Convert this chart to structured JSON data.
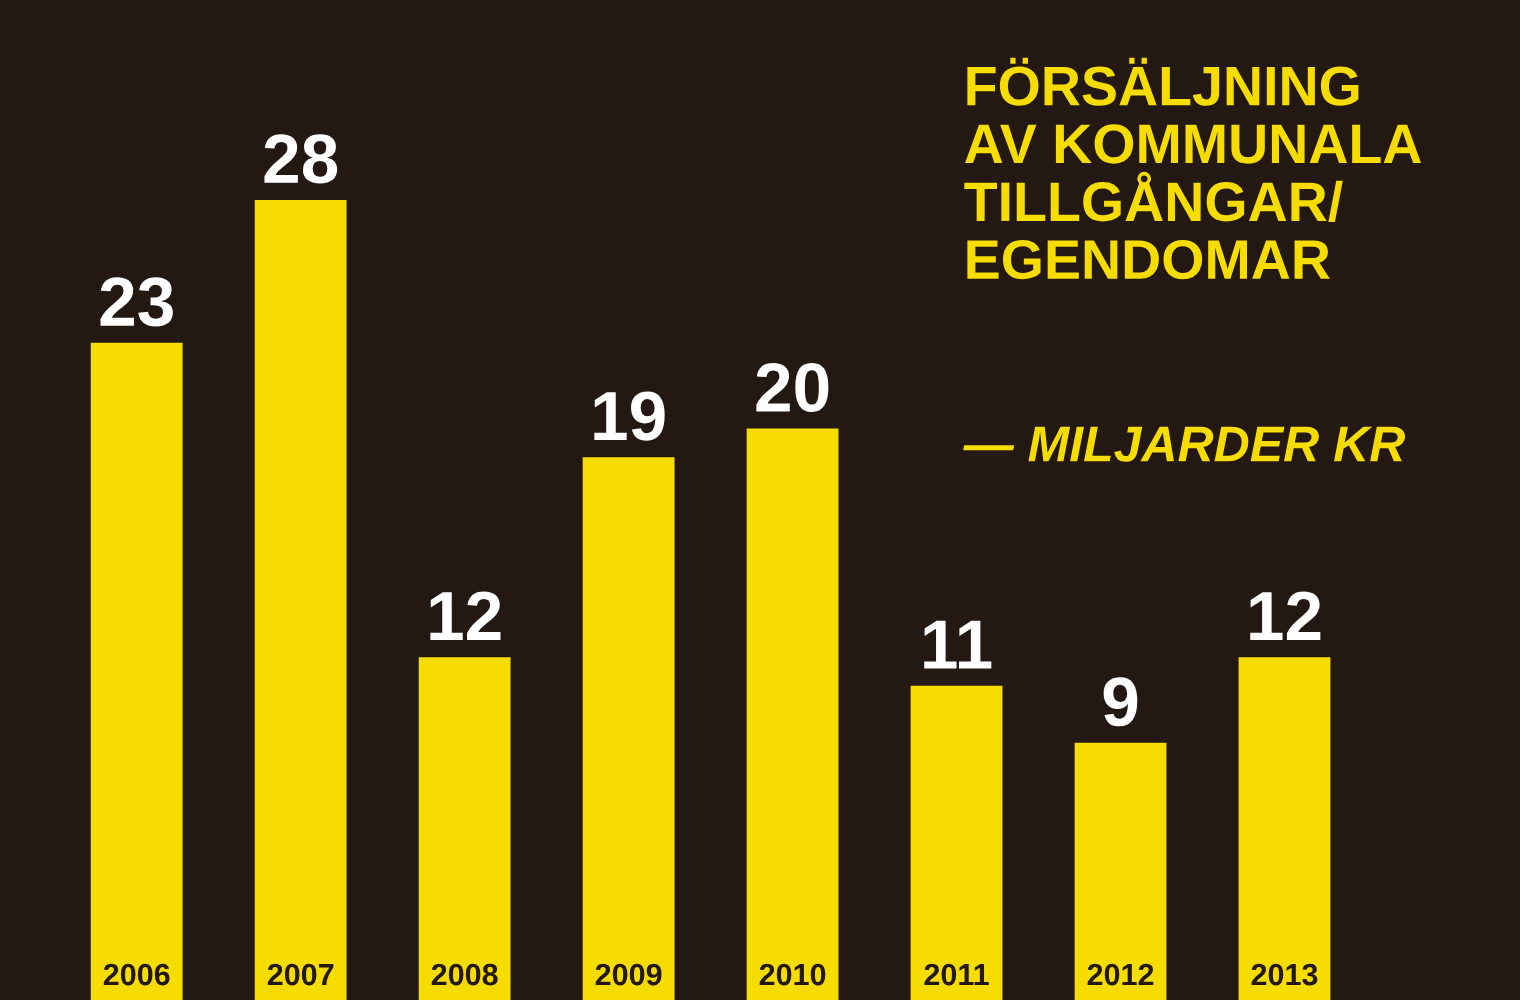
{
  "chart_data": {
    "type": "bar",
    "title": "FÖRSÄLJNING\nAV KOMMUNALA\nTILLGÅNGAR/\nEGENDOMAR",
    "subtitle": "— MILJARDER KR",
    "categories": [
      "2006",
      "2007",
      "2008",
      "2009",
      "2010",
      "2011",
      "2012",
      "2013"
    ],
    "values": [
      23,
      28,
      12,
      19,
      20,
      11,
      9,
      12
    ],
    "color": "#f7dc00",
    "data_labels": true,
    "legend": false
  }
}
